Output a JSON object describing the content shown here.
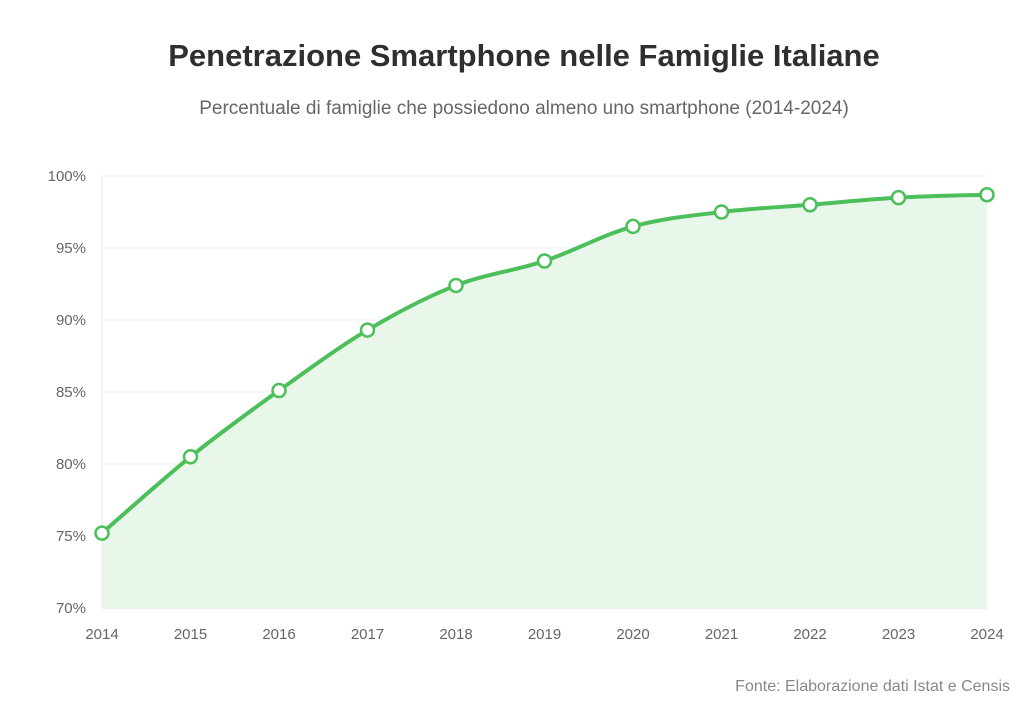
{
  "chart_data": {
    "type": "area",
    "title": "Penetrazione Smartphone nelle Famiglie Italiane",
    "subtitle": "Percentuale di famiglie che possiedono almeno uno smartphone (2014-2024)",
    "source": "Fonte: Elaborazione dati Istat e Censis",
    "categories": [
      "2014",
      "2015",
      "2016",
      "2017",
      "2018",
      "2019",
      "2020",
      "2021",
      "2022",
      "2023",
      "2024"
    ],
    "values": [
      75.2,
      80.5,
      85.1,
      89.3,
      92.4,
      94.1,
      96.5,
      97.5,
      98.0,
      98.5,
      98.7
    ],
    "ylim": [
      70,
      100
    ],
    "yticks": [
      70,
      75,
      80,
      85,
      90,
      95,
      100
    ],
    "ytick_labels": [
      "70%",
      "75%",
      "80%",
      "85%",
      "90%",
      "95%",
      "100%"
    ],
    "grid": true,
    "colors": {
      "line": "#4cbf5a",
      "fill": "#e8f7ea",
      "marker_fill": "#ffffff"
    }
  }
}
